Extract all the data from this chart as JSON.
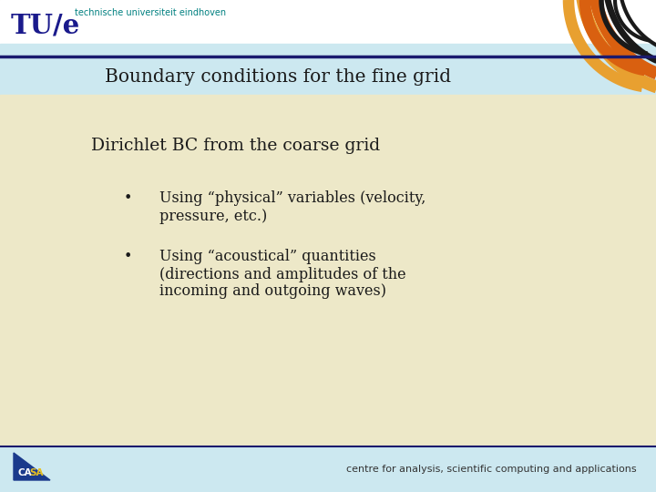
{
  "bg_main": "#ede8c8",
  "bg_header": "#ffffff",
  "bg_header_stripe": "#cce8f0",
  "bg_title_strip": "#cce8f0",
  "header_line_color": "#1a1a6e",
  "title_text": "Boundary conditions for the fine grid",
  "title_color": "#1a1a1a",
  "title_fontsize": 14.5,
  "subtitle_text": "Dirichlet BC from the coarse grid",
  "subtitle_color": "#1a1a1a",
  "subtitle_fontsize": 13.5,
  "bullet1_line1": "Using “physical” variables (velocity,",
  "bullet1_line2": "pressure, etc.)",
  "bullet2_line1": "Using “acoustical” quantities",
  "bullet2_line2": "(directions and amplitudes of the",
  "bullet2_line3": "incoming and outgoing waves)",
  "bullet_color": "#1a1a1a",
  "bullet_fontsize": 11.5,
  "tue_text": "TU/e",
  "tue_color": "#1a1a8c",
  "tue_sub_text": "technische universiteit eindhoven",
  "tue_sub_color": "#008080",
  "footer_text": "centre for analysis, scientific computing and applications",
  "footer_color": "#333333",
  "footer_fontsize": 8,
  "stripe_black": "#1a1a1a",
  "stripe_orange": "#d96010",
  "stripe_light_orange": "#e8a030",
  "casa_blue": "#1a3a8c",
  "casa_yellow": "#e8c020"
}
